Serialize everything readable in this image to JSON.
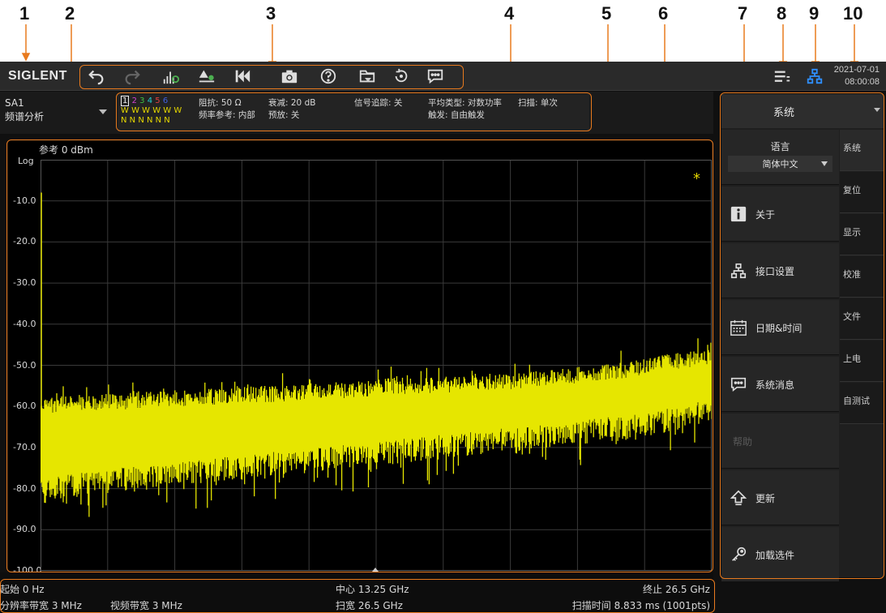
{
  "callouts": [
    "1",
    "2",
    "3",
    "4",
    "5",
    "6",
    "7",
    "8",
    "9",
    "10"
  ],
  "topbar": {
    "logo": "SIGLENT",
    "date": "2021-07-01",
    "time": "08:00:08",
    "toolbar_icons": [
      "undo-icon",
      "redo-icon",
      "peak-search-icon",
      "marker-icon",
      "preset-icon",
      "camera-icon",
      "help-icon",
      "folder-icon",
      "refresh-icon",
      "message-icon"
    ]
  },
  "infobar": {
    "mode_line1": "SA1",
    "mode_line2": "频谱分析",
    "traces": {
      "numbers": [
        "1",
        "2",
        "3",
        "4",
        "5",
        "6"
      ],
      "row2": "W W W W W W",
      "row3": "N N N N N N"
    },
    "params": {
      "impedance": "阻抗: 50 Ω",
      "freq_ref": "频率参考: 内部",
      "atten": "衰减: 20 dB",
      "preamp": "预放: 关",
      "tracking": "信号追踪: 关",
      "avg_type": "平均类型: 对数功率",
      "trigger": "触发: 自由触发",
      "sweep": "扫描: 单次"
    }
  },
  "plot": {
    "ref_level": "参考  0 dBm",
    "scale": "Log",
    "y_labels": [
      "-10.0",
      "-20.0",
      "-30.0",
      "-40.0",
      "-50.0",
      "-60.0",
      "-70.0",
      "-80.0",
      "-90.0",
      "-100.0"
    ],
    "trace_color": "#e6e600"
  },
  "bottombar": {
    "start": "起始  0 Hz",
    "center": "中心  13.25 GHz",
    "stop": "终止  26.5 GHz",
    "rbw": "分辨率带宽  3 MHz",
    "vbw": "视频带宽  3 MHz",
    "span": "扫宽  26.5 GHz",
    "sweep_time": "扫描时间  8.833 ms (1001pts)"
  },
  "rpanel": {
    "header": "系统",
    "language_label": "语言",
    "language_value": "简体中文",
    "menu": [
      "关于",
      "接口设置",
      "日期&时间",
      "系统消息",
      "帮助",
      "更新",
      "加载选件"
    ],
    "tabs": [
      "系统",
      "复位",
      "显示",
      "校准",
      "文件",
      "上电",
      "自测试"
    ]
  },
  "chart_data": {
    "type": "line",
    "title": "",
    "xlabel": "",
    "ylabel": "",
    "x_start_hz": 0,
    "x_stop_hz": 26500000000,
    "ylim": [
      -100,
      0
    ],
    "series": [
      {
        "values_max": [
          -58,
          -57,
          -57,
          -56,
          -56,
          -55,
          -55,
          -54,
          -54,
          -53,
          -53,
          -52,
          -52,
          -51,
          -50,
          -49,
          -47,
          -46
        ]
      },
      {
        "values_min": [
          -82,
          -80,
          -79,
          -78,
          -77,
          -76,
          -75,
          -74,
          -73,
          -72,
          -71,
          -70,
          -69,
          -68,
          -67,
          -66,
          -64,
          -62
        ]
      }
    ]
  }
}
